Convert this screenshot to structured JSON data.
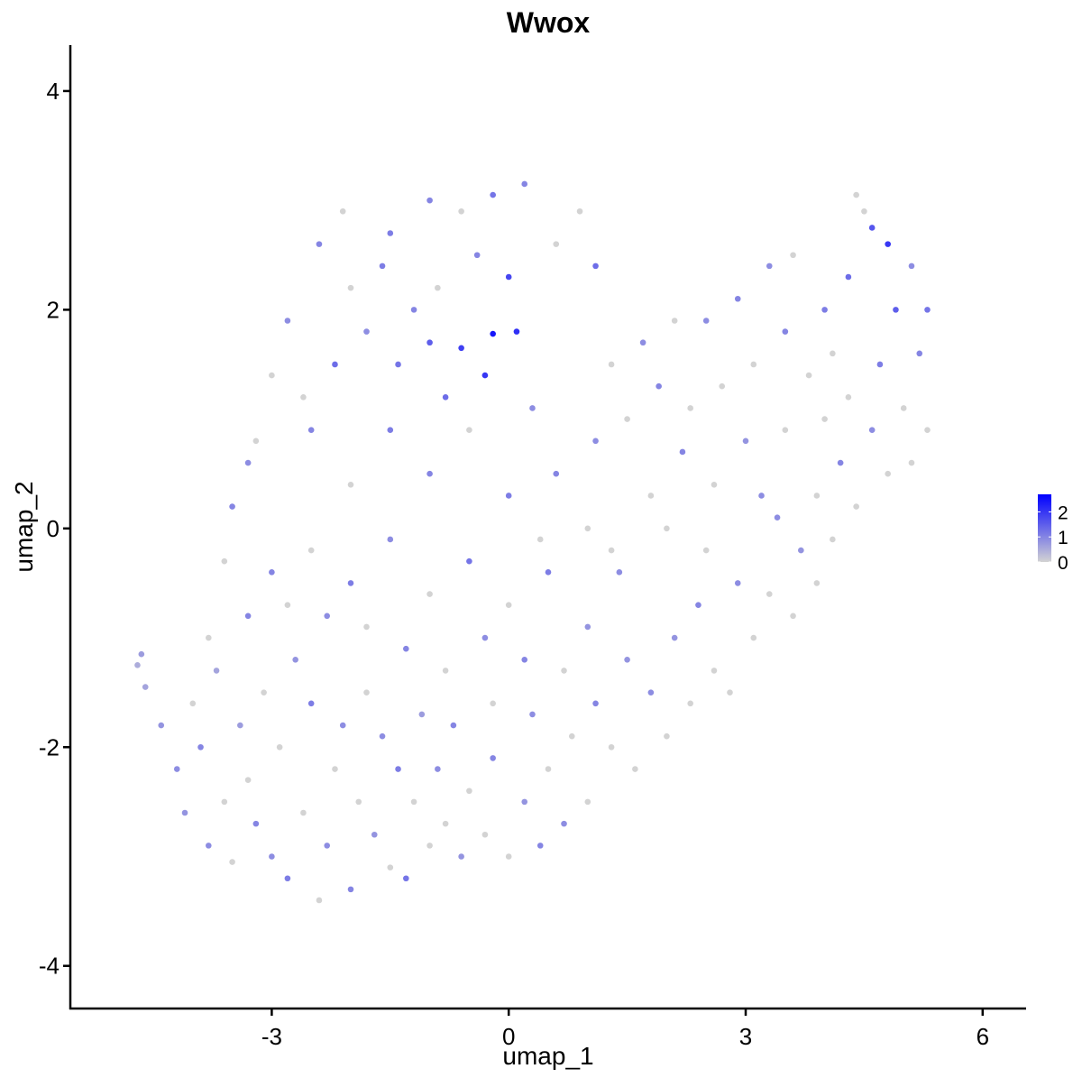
{
  "chart_data": {
    "type": "scatter",
    "title": "Wwox",
    "x_label": "umap_1",
    "y_label": "umap_2",
    "xlim": [
      -5.55,
      6.55
    ],
    "ylim": [
      -4.39,
      4.42
    ],
    "xticks": [
      -3,
      0,
      3,
      6
    ],
    "yticks": [
      -4,
      -2,
      0,
      2,
      4
    ],
    "color_low": "#d3d3d3",
    "color_high": "#0000ff",
    "colorbar_lim": [
      0,
      2.7
    ],
    "colorbar_ticks": [
      0,
      1,
      2
    ],
    "x": [
      -4.7,
      -4.65,
      -4.6,
      -4.4,
      -4.2,
      -4.1,
      -4.0,
      -3.9,
      -3.8,
      -3.7,
      -3.6,
      -3.5,
      -3.4,
      -3.3,
      -3.2,
      -3.1,
      -3.0,
      -2.9,
      -2.8,
      -2.7,
      -2.6,
      -2.5,
      -2.4,
      -2.3,
      -2.2,
      -2.1,
      -2.0,
      -1.9,
      -1.8,
      -1.7,
      -1.6,
      -1.5,
      -1.4,
      -1.3,
      -1.2,
      -1.1,
      -1.0,
      -0.9,
      -0.8,
      -0.6,
      -0.5,
      -0.3,
      -0.2,
      0.0,
      0.2,
      0.4,
      0.5,
      0.7,
      0.8,
      1.0,
      1.1,
      1.3,
      1.5,
      1.6,
      1.8,
      2.0,
      2.1,
      2.3,
      2.4,
      2.6,
      2.8,
      2.9,
      3.1,
      3.3,
      3.4,
      3.6,
      3.7,
      3.9,
      4.1,
      4.2,
      4.4,
      4.6,
      4.8,
      5.0,
      5.1,
      5.3,
      5.2,
      5.3,
      5.1,
      4.9,
      4.8,
      4.6,
      4.5,
      4.4,
      4.3,
      4.1,
      4.0,
      3.8,
      3.6,
      3.5,
      3.3,
      3.1,
      2.9,
      2.7,
      2.5,
      2.3,
      2.1,
      1.9,
      1.7,
      1.5,
      1.3,
      1.1,
      2.6,
      2.2,
      1.8,
      3.0,
      3.5,
      4.0,
      2.0,
      1.4,
      1.0,
      0.6,
      0.3,
      0.1,
      -0.2,
      -0.3,
      -0.6,
      -0.8,
      -1.0,
      -1.2,
      -1.4,
      -1.6,
      -1.8,
      -2.0,
      -2.2,
      -2.4,
      -2.6,
      -2.8,
      -3.0,
      -3.2,
      -3.3,
      -2.1,
      -1.5,
      -1.0,
      -0.6,
      -0.2,
      0.2,
      0.6,
      1.1,
      0.9,
      0.0,
      -0.4,
      -0.9,
      -2.5,
      -2.0,
      -1.5,
      -1.0,
      -0.5,
      0.0,
      0.4,
      -3.5,
      -3.6,
      -3.0,
      -2.5,
      -2.0,
      -1.5,
      -1.0,
      -0.5,
      0.0,
      0.5,
      1.0,
      0.7,
      0.2,
      -0.3,
      -0.8,
      -1.3,
      -1.8,
      -2.3,
      -2.8,
      -3.3,
      -3.8,
      -0.2,
      0.3,
      -0.7,
      1.3,
      2.5,
      3.9,
      4.7,
      4.3,
      3.2
    ],
    "y": [
      -1.25,
      -1.15,
      -1.45,
      -1.8,
      -2.2,
      -2.6,
      -1.6,
      -2.0,
      -2.9,
      -1.3,
      -2.5,
      -3.05,
      -1.8,
      -2.3,
      -2.7,
      -1.5,
      -3.0,
      -2.0,
      -3.2,
      -1.2,
      -2.6,
      -1.6,
      -3.4,
      -2.9,
      -2.2,
      -1.8,
      -3.3,
      -2.5,
      -1.5,
      -2.8,
      -1.9,
      -3.1,
      -2.2,
      -3.2,
      -2.5,
      -1.7,
      -2.9,
      -2.2,
      -2.7,
      -3.0,
      -2.4,
      -2.8,
      -2.1,
      -3.0,
      -2.5,
      -2.9,
      -2.2,
      -2.7,
      -1.9,
      -2.5,
      -1.6,
      -2.0,
      -1.2,
      -2.2,
      -1.5,
      -1.9,
      -1.0,
      -1.6,
      -0.7,
      -1.3,
      -1.5,
      -0.5,
      -1.0,
      -0.6,
      0.1,
      -0.8,
      -0.2,
      0.3,
      -0.1,
      0.6,
      0.2,
      0.9,
      0.5,
      1.1,
      0.6,
      0.9,
      1.6,
      2.0,
      2.4,
      2.0,
      2.6,
      2.75,
      2.9,
      3.05,
      2.3,
      1.6,
      2.0,
      1.4,
      2.5,
      1.8,
      2.4,
      1.5,
      2.1,
      1.3,
      1.9,
      1.1,
      1.9,
      1.3,
      1.7,
      1.0,
      1.5,
      0.8,
      0.4,
      0.7,
      0.3,
      0.8,
      0.9,
      1.0,
      0.0,
      -0.4,
      0.0,
      0.5,
      1.1,
      1.8,
      1.78,
      1.4,
      1.65,
      1.2,
      1.7,
      2.0,
      1.5,
      2.4,
      1.8,
      2.2,
      1.5,
      2.6,
      1.2,
      1.9,
      1.4,
      0.8,
      0.6,
      2.9,
      2.7,
      3.0,
      2.9,
      3.05,
      3.15,
      2.6,
      2.4,
      2.9,
      2.3,
      2.5,
      2.2,
      0.9,
      0.4,
      0.9,
      0.5,
      0.9,
      0.3,
      -0.1,
      0.2,
      -0.3,
      -0.4,
      -0.2,
      -0.5,
      -0.1,
      -0.6,
      -0.3,
      -0.7,
      -0.4,
      -0.9,
      -1.3,
      -1.2,
      -1.0,
      -1.3,
      -1.1,
      -0.9,
      -0.8,
      -0.7,
      -0.8,
      -1.0,
      -1.6,
      -1.7,
      -1.8,
      -0.2,
      -0.2,
      -0.5,
      1.5,
      1.2,
      0.3
    ],
    "values": [
      0.5,
      0.7,
      0.6,
      0.8,
      0.9,
      0.8,
      0,
      1.0,
      0.9,
      0.6,
      0,
      0,
      0.7,
      0,
      1.0,
      0,
      0.9,
      0,
      1.1,
      0.8,
      0,
      1.1,
      0,
      0.9,
      0,
      0.9,
      1.0,
      0,
      0,
      0.8,
      0.9,
      0,
      1.1,
      1.2,
      0,
      0.7,
      0,
      0.9,
      0,
      0.8,
      0,
      0,
      1.0,
      0,
      0.8,
      1.0,
      0,
      0.9,
      0,
      0,
      1.0,
      0,
      0.8,
      0,
      0.9,
      0,
      0.8,
      0,
      1.0,
      0,
      0,
      0.9,
      0,
      0,
      0.9,
      0,
      0.8,
      0,
      0,
      1.0,
      0,
      0.9,
      0,
      0,
      0,
      0,
      1.0,
      1.2,
      0.9,
      1.5,
      2.0,
      1.6,
      0,
      0,
      1.3,
      0,
      1.1,
      0,
      0,
      1.0,
      0.9,
      0,
      1.0,
      0,
      0.9,
      0,
      0,
      1.0,
      0.9,
      0,
      0,
      0.9,
      0,
      1.0,
      0,
      0.8,
      0,
      0,
      0,
      0.9,
      0,
      1.0,
      0.9,
      2.1,
      2.4,
      2.0,
      1.9,
      1.3,
      1.5,
      1.0,
      1.2,
      1.1,
      0.9,
      0,
      1.3,
      1.0,
      0,
      0.9,
      0,
      0,
      0.9,
      0,
      1.1,
      1.0,
      0,
      1.2,
      1.0,
      0,
      1.3,
      0,
      1.8,
      1.0,
      0,
      1.0,
      0,
      1.1,
      1.0,
      0,
      1.1,
      0,
      1.0,
      0,
      1.0,
      0,
      1.1,
      0.9,
      0,
      1.2,
      0,
      1.1,
      0.8,
      0,
      1.0,
      0.9,
      0,
      1.0,
      0,
      0.9,
      0,
      1.0,
      0,
      0,
      0.9,
      1.0,
      0,
      0,
      0,
      1.1,
      0,
      0.9
    ]
  }
}
